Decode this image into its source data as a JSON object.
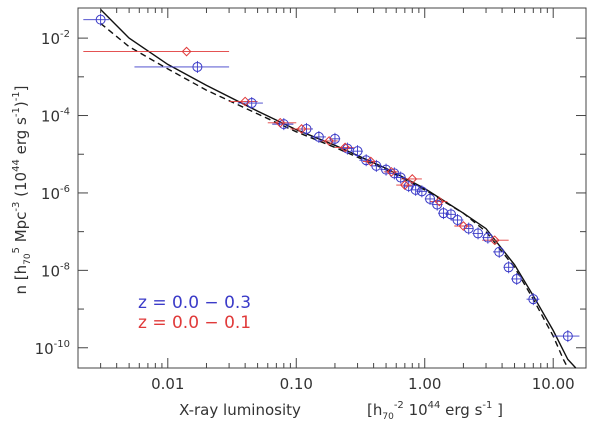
{
  "chart_data": {
    "type": "scatter",
    "title": "",
    "xlabel_main": "X-ray luminosity",
    "xlabel_units_pre": "[h",
    "xlabel_units_sub": "70",
    "xlabel_units_sup": "-2",
    "xlabel_units_post": " 10",
    "xlabel_units_sup2": "44",
    "xlabel_units_tail": " erg s",
    "xlabel_units_sup3": "-1",
    "xlabel_units_close": " ]",
    "ylabel_a": "n  [h",
    "ylabel_sub": "70",
    "ylabel_sup": "5",
    "ylabel_b": " Mpc",
    "ylabel_sup2": "-3",
    "ylabel_c": " (10",
    "ylabel_sup3": "44",
    "ylabel_d": " erg  s",
    "ylabel_sup4": "-1",
    "ylabel_e": ")",
    "ylabel_sup5": "-1",
    "ylabel_f": "]",
    "xscale": "log",
    "yscale": "log",
    "xlim": [
      0.002,
      18
    ],
    "ylim": [
      3e-11,
      0.06
    ],
    "x_ticks": [
      {
        "v": 0.01,
        "label": "0.01"
      },
      {
        "v": 0.1,
        "label": "0.10"
      },
      {
        "v": 1,
        "label": "1.00"
      },
      {
        "v": 10,
        "label": "10.00"
      }
    ],
    "y_ticks": [
      {
        "v": 0.01,
        "base": "10",
        "exp": "-2"
      },
      {
        "v": 0.0001,
        "base": "10",
        "exp": "-4"
      },
      {
        "v": 1e-06,
        "base": "10",
        "exp": "-6"
      },
      {
        "v": 1e-08,
        "base": "10",
        "exp": "-8"
      },
      {
        "v": 1e-10,
        "base": "10",
        "exp": "-10"
      }
    ],
    "legend": [
      {
        "text": "z = 0.0 − 0.3",
        "color": "#3b3bc8"
      },
      {
        "text": "z = 0.0 − 0.1",
        "color": "#e03a3a"
      }
    ],
    "series": [
      {
        "marker": "circle-cross",
        "color": "#3b3bc8",
        "points": [
          {
            "x": 0.003,
            "y": 0.03,
            "xlo": 0.0022,
            "xhi": 0.0035
          },
          {
            "x": 0.017,
            "y": 0.0018,
            "xlo": 0.0055,
            "xhi": 0.03
          },
          {
            "x": 0.045,
            "y": 0.00021,
            "xlo": 0.035,
            "xhi": 0.055
          },
          {
            "x": 0.08,
            "y": 6e-05,
            "xlo": 0.065,
            "xhi": 0.095
          },
          {
            "x": 0.12,
            "y": 4.5e-05,
            "xlo": 0.105,
            "xhi": 0.135
          },
          {
            "x": 0.15,
            "y": 2.8e-05,
            "xlo": 0.13,
            "xhi": 0.17
          },
          {
            "x": 0.2,
            "y": 2.5e-05,
            "xlo": 0.18,
            "xhi": 0.22
          },
          {
            "x": 0.25,
            "y": 1.4e-05,
            "xlo": 0.22,
            "xhi": 0.28
          },
          {
            "x": 0.3,
            "y": 1.2e-05,
            "xlo": 0.27,
            "xhi": 0.33
          },
          {
            "x": 0.35,
            "y": 7e-06,
            "xlo": 0.31,
            "xhi": 0.39
          },
          {
            "x": 0.42,
            "y": 5e-06,
            "xlo": 0.38,
            "xhi": 0.46
          },
          {
            "x": 0.5,
            "y": 4e-06,
            "xlo": 0.45,
            "xhi": 0.55
          },
          {
            "x": 0.58,
            "y": 3.2e-06,
            "xlo": 0.52,
            "xhi": 0.64
          },
          {
            "x": 0.65,
            "y": 2.5e-06,
            "xlo": 0.59,
            "xhi": 0.71
          },
          {
            "x": 0.75,
            "y": 1.5e-06,
            "xlo": 0.68,
            "xhi": 0.82
          },
          {
            "x": 0.85,
            "y": 1.2e-06,
            "xlo": 0.77,
            "xhi": 0.93
          },
          {
            "x": 0.95,
            "y": 1.1e-06,
            "xlo": 0.86,
            "xhi": 1.05
          },
          {
            "x": 1.1,
            "y": 7e-07,
            "xlo": 1.0,
            "xhi": 1.2
          },
          {
            "x": 1.25,
            "y": 5e-07,
            "xlo": 1.13,
            "xhi": 1.38
          },
          {
            "x": 1.4,
            "y": 3e-07,
            "xlo": 1.27,
            "xhi": 1.55
          },
          {
            "x": 1.6,
            "y": 2.8e-07,
            "xlo": 1.45,
            "xhi": 1.75
          },
          {
            "x": 1.8,
            "y": 2e-07,
            "xlo": 1.6,
            "xhi": 2.0
          },
          {
            "x": 2.2,
            "y": 1.2e-07,
            "xlo": 2.0,
            "xhi": 2.4
          },
          {
            "x": 2.6,
            "y": 9e-08,
            "xlo": 2.35,
            "xhi": 2.85
          },
          {
            "x": 3.1,
            "y": 7e-08,
            "xlo": 2.8,
            "xhi": 3.4
          },
          {
            "x": 3.8,
            "y": 3e-08,
            "xlo": 3.4,
            "xhi": 4.2
          },
          {
            "x": 4.5,
            "y": 1.2e-08,
            "xlo": 4.1,
            "xhi": 4.9
          },
          {
            "x": 5.2,
            "y": 6e-09,
            "xlo": 4.7,
            "xhi": 5.7
          },
          {
            "x": 7.0,
            "y": 1.8e-09,
            "xlo": 6.2,
            "xhi": 7.8
          },
          {
            "x": 13.0,
            "y": 2e-10,
            "xlo": 10.0,
            "xhi": 16.0
          }
        ]
      },
      {
        "marker": "diamond",
        "color": "#e03a3a",
        "points": [
          {
            "x": 0.014,
            "y": 0.0045,
            "xlo": 0.0022,
            "xhi": 0.03
          },
          {
            "x": 0.04,
            "y": 0.00023,
            "xlo": 0.03,
            "xhi": 0.05
          },
          {
            "x": 0.075,
            "y": 6.5e-05,
            "xlo": 0.06,
            "xhi": 0.1
          },
          {
            "x": 0.11,
            "y": 4.5e-05,
            "xlo": 0.09,
            "xhi": 0.13
          },
          {
            "x": 0.18,
            "y": 2.2e-05,
            "xlo": 0.15,
            "xhi": 0.21
          },
          {
            "x": 0.24,
            "y": 1.5e-05,
            "xlo": 0.2,
            "xhi": 0.28
          },
          {
            "x": 0.38,
            "y": 6.5e-06,
            "xlo": 0.33,
            "xhi": 0.43
          },
          {
            "x": 0.55,
            "y": 3.5e-06,
            "xlo": 0.48,
            "xhi": 0.62
          },
          {
            "x": 0.7,
            "y": 1.6e-06,
            "xlo": 0.6,
            "xhi": 0.8
          },
          {
            "x": 0.8,
            "y": 2.3e-06,
            "xlo": 0.65,
            "xhi": 0.95
          },
          {
            "x": 1.3,
            "y": 6e-07,
            "xlo": 1.1,
            "xhi": 1.5
          },
          {
            "x": 2.0,
            "y": 1.4e-07,
            "xlo": 1.7,
            "xhi": 2.3
          },
          {
            "x": 3.5,
            "y": 6e-08,
            "xlo": 2.8,
            "xhi": 4.5
          }
        ]
      }
    ],
    "curves": [
      {
        "style": "solid",
        "points": [
          [
            0.003,
            0.055
          ],
          [
            0.005,
            0.01
          ],
          [
            0.01,
            0.0021
          ],
          [
            0.02,
            0.0006
          ],
          [
            0.05,
            0.00013
          ],
          [
            0.1,
            4.3e-05
          ],
          [
            0.2,
            1.7e-05
          ],
          [
            0.5,
            4.3e-06
          ],
          [
            1.0,
            1.3e-06
          ],
          [
            2.0,
            3e-07
          ],
          [
            3.0,
            1.2e-07
          ],
          [
            5.0,
            1.4e-08
          ],
          [
            7.0,
            2.2e-09
          ],
          [
            10.0,
            2.8e-10
          ],
          [
            13.0,
            5e-11
          ],
          [
            15.0,
            3e-11
          ]
        ]
      },
      {
        "style": "dashed",
        "points": [
          [
            0.003,
            0.024
          ],
          [
            0.005,
            0.006
          ],
          [
            0.01,
            0.0016
          ],
          [
            0.02,
            0.00045
          ],
          [
            0.05,
            0.00011
          ],
          [
            0.1,
            3.8e-05
          ],
          [
            0.2,
            1.5e-05
          ],
          [
            0.5,
            4e-06
          ],
          [
            1.0,
            1.2e-06
          ],
          [
            2.0,
            3e-07
          ],
          [
            3.0,
            1e-07
          ],
          [
            5.0,
            1.2e-08
          ],
          [
            7.0,
            1.8e-09
          ],
          [
            10.0,
            2e-10
          ],
          [
            12.0,
            5e-11
          ],
          [
            13.0,
            3e-11
          ]
        ]
      }
    ]
  }
}
